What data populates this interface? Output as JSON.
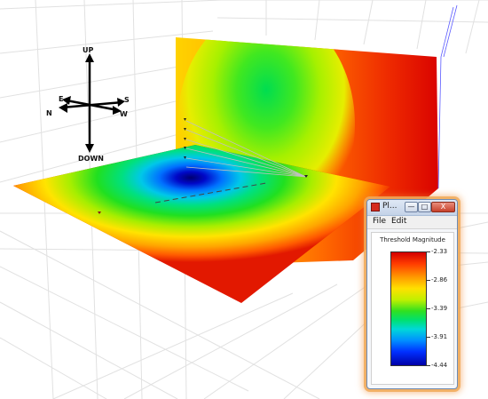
{
  "compass": {
    "up": "UP",
    "down": "DOWN",
    "east": "E",
    "west": "W",
    "north": "N",
    "south": "S"
  },
  "legend_window": {
    "title": "Pl...",
    "min_glyph": "—",
    "max_glyph": "□",
    "close_glyph": "X",
    "menu": [
      "File",
      "Edit"
    ],
    "legend_title": "Threshold Magnitude",
    "ticks": [
      "-2.33",
      "-2.86",
      "-3.39",
      "-3.91",
      "-4.44"
    ]
  },
  "colors": {
    "high": "#d20000",
    "mid": "#30e020",
    "low": "#0000a8"
  }
}
